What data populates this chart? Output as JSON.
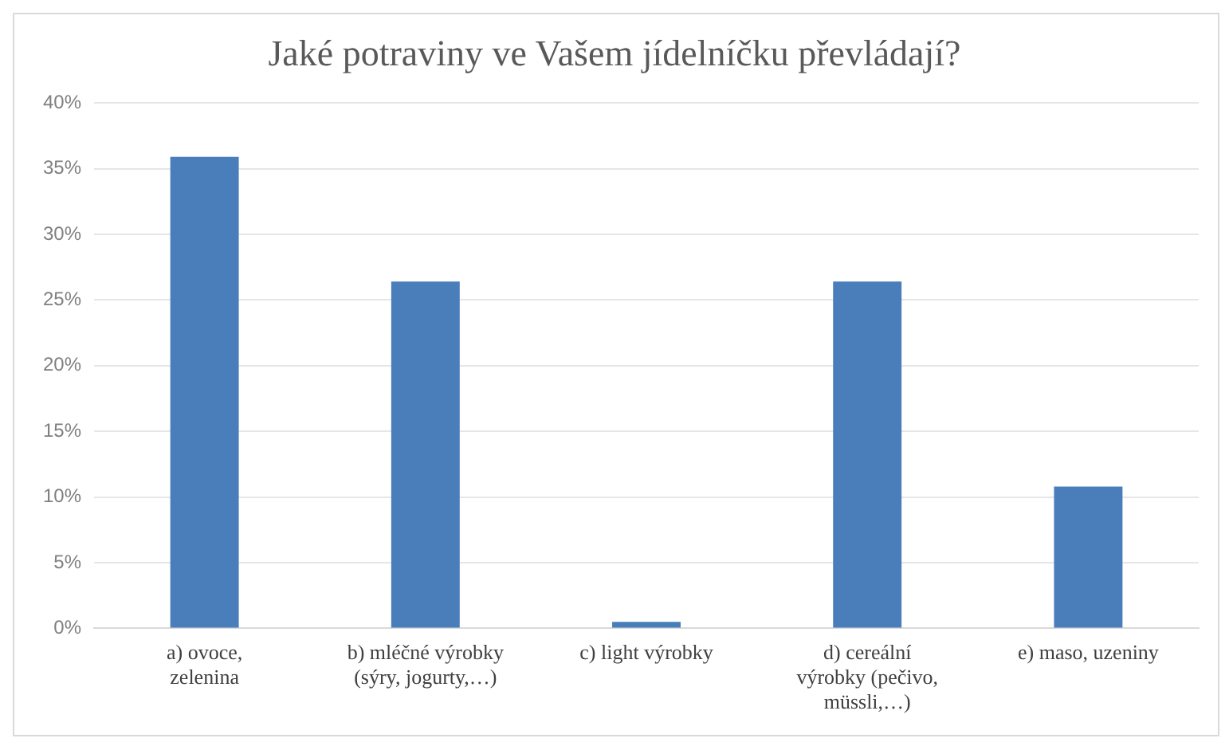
{
  "chart_data": {
    "type": "bar",
    "title": "Jaké potraviny ve Vašem jídelníčku převládají?",
    "categories": [
      "a) ovoce, zelenina",
      "b) mléčné výrobky (sýry, jogurty,…)",
      "c) light výrobky",
      "d) cereální výrobky (pečivo, müssli,…)",
      "e) maso, uzeniny"
    ],
    "values": [
      35.9,
      26.4,
      0.5,
      26.4,
      10.8
    ],
    "color": "#4a7ebb",
    "ylim": [
      0,
      40
    ],
    "yticks": [
      {
        "value": 0,
        "label": "0%"
      },
      {
        "value": 5,
        "label": "5%"
      },
      {
        "value": 10,
        "label": "10%"
      },
      {
        "value": 15,
        "label": "15%"
      },
      {
        "value": 20,
        "label": "20%"
      },
      {
        "value": 25,
        "label": "25%"
      },
      {
        "value": 30,
        "label": "30%"
      },
      {
        "value": 35,
        "label": "35%"
      },
      {
        "value": 40,
        "label": "40%"
      }
    ],
    "grid": "y"
  }
}
